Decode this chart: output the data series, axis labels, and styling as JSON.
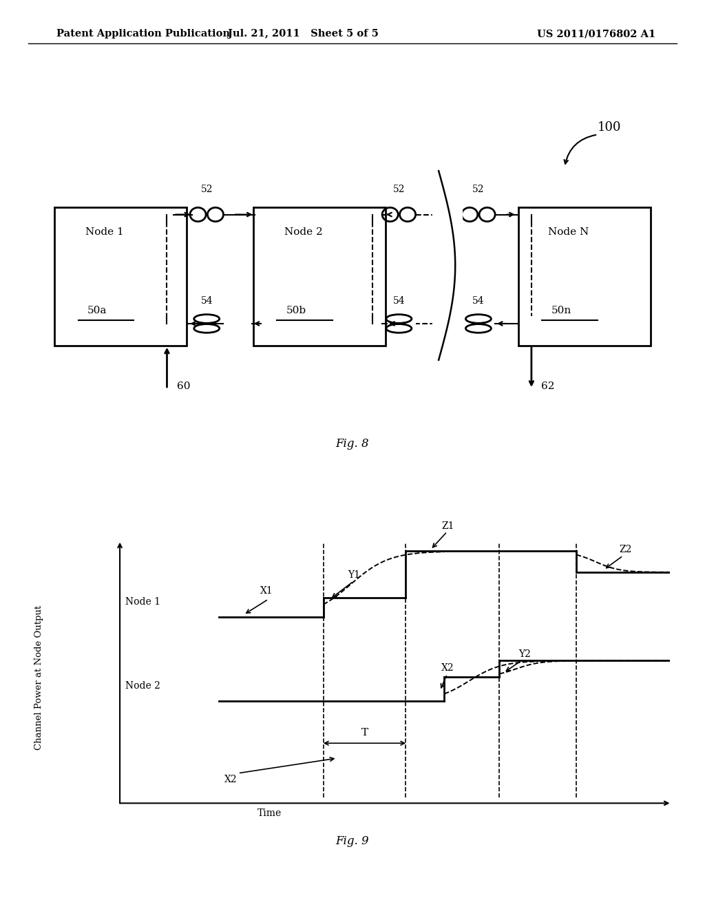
{
  "bg_color": "#ffffff",
  "text_color": "#000000",
  "header_left": "Patent Application Publication",
  "header_center": "Jul. 21, 2011   Sheet 5 of 5",
  "header_right": "US 2011/0176802 A1",
  "fig8_label": "Fig. 8",
  "fig9_label": "Fig. 9",
  "label_100": "100",
  "label_60": "60",
  "label_62": "62",
  "node1_label": "Node 1",
  "node2_label": "Node 2",
  "nodeN_label": "Node N",
  "node1_id": "50a",
  "node2_id": "50b",
  "nodeN_id": "50n",
  "ylabel": "Channel Power at Node Output",
  "xlabel": "Time",
  "node1_text": "Node 1",
  "node2_text": "Node 2",
  "annotation_X1": "X1",
  "annotation_Y1": "Y1",
  "annotation_Z1": "Z1",
  "annotation_X2_top": "X2",
  "annotation_Y2": "Y2",
  "annotation_Z2": "Z2",
  "annotation_X2_bottom": "X2",
  "annotation_T": "T"
}
